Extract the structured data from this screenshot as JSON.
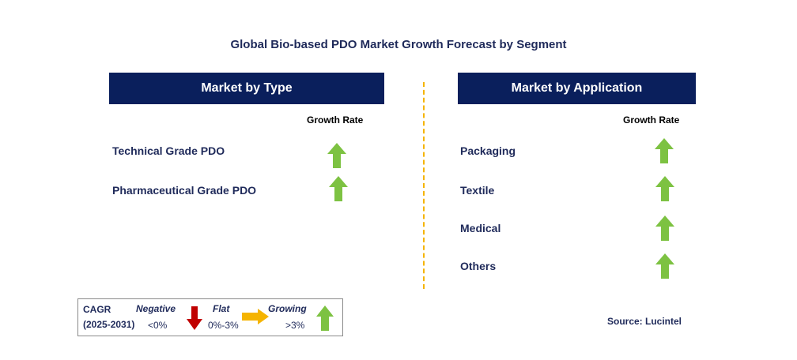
{
  "title": "Global Bio-based PDO Market Growth Forecast by Segment",
  "left_panel": {
    "header": "Market by Type",
    "growth_rate_label": "Growth Rate",
    "items": [
      {
        "label": "Technical Grade PDO",
        "trend": "growing"
      },
      {
        "label": "Pharmaceutical Grade PDO",
        "trend": "growing"
      }
    ]
  },
  "right_panel": {
    "header": "Market by Application",
    "growth_rate_label": "Growth Rate",
    "items": [
      {
        "label": "Packaging",
        "trend": "growing"
      },
      {
        "label": "Textile",
        "trend": "growing"
      },
      {
        "label": "Medical",
        "trend": "growing"
      },
      {
        "label": "Others",
        "trend": "growing"
      }
    ]
  },
  "legend": {
    "cagr": "CAGR",
    "period": "(2025-2031)",
    "negative": "Negative",
    "negative_range": "<0%",
    "flat": "Flat",
    "flat_range": "0%-3%",
    "growing": "Growing",
    "growing_range": ">3%"
  },
  "source": "Source: Lucintel",
  "colors": {
    "header_bg": "#0a1f5c",
    "up_arrow": "#7dc242",
    "down_arrow": "#c00000",
    "flat_arrow": "#f5b400",
    "divider": "#f5b400"
  }
}
